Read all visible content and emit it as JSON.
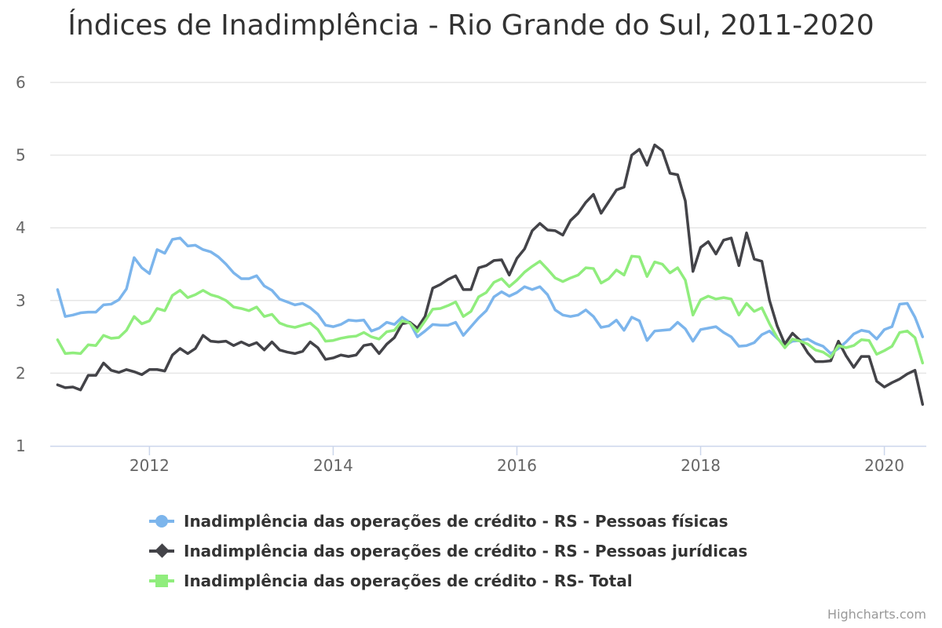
{
  "chart_data": {
    "type": "line",
    "title": "Índices de Inadimplência - Rio Grande do Sul, 2011-2020",
    "xlabel": "",
    "ylabel": "",
    "ylim": [
      1,
      6
    ],
    "y_ticks": [
      "1",
      "2",
      "3",
      "4",
      "5",
      "6"
    ],
    "x_ticks": [
      "2012",
      "2014",
      "2016",
      "2018",
      "2020"
    ],
    "x_start": "2011-01",
    "x_end": "2020-06",
    "frequency": "monthly",
    "grid": true,
    "series": [
      {
        "name": "Inadimplência das operações de crédito - RS - Pessoas físicas",
        "color": "#7cb5ec",
        "marker": "circle",
        "values": [
          3.15,
          2.78,
          2.8,
          2.83,
          2.84,
          2.84,
          2.94,
          2.95,
          3.01,
          3.16,
          3.59,
          3.45,
          3.37,
          3.7,
          3.65,
          3.84,
          3.86,
          3.75,
          3.76,
          3.7,
          3.67,
          3.6,
          3.5,
          3.38,
          3.3,
          3.3,
          3.34,
          3.2,
          3.14,
          3.02,
          2.98,
          2.94,
          2.96,
          2.9,
          2.81,
          2.66,
          2.64,
          2.67,
          2.73,
          2.72,
          2.73,
          2.58,
          2.62,
          2.7,
          2.67,
          2.77,
          2.7,
          2.5,
          2.58,
          2.67,
          2.66,
          2.66,
          2.7,
          2.52,
          2.64,
          2.76,
          2.86,
          3.05,
          3.12,
          3.06,
          3.11,
          3.19,
          3.15,
          3.19,
          3.08,
          2.87,
          2.8,
          2.78,
          2.8,
          2.87,
          2.78,
          2.63,
          2.65,
          2.73,
          2.59,
          2.77,
          2.72,
          2.45,
          2.58,
          2.59,
          2.6,
          2.7,
          2.61,
          2.44,
          2.6,
          2.62,
          2.64,
          2.56,
          2.5,
          2.37,
          2.38,
          2.42,
          2.53,
          2.58,
          2.48,
          2.38,
          2.44,
          2.45,
          2.47,
          2.41,
          2.37,
          2.27,
          2.34,
          2.43,
          2.54,
          2.59,
          2.57,
          2.47,
          2.6,
          2.64,
          2.95,
          2.96,
          2.77,
          2.5
        ]
      },
      {
        "name": "Inadimplência das operações de crédito - RS - Pessoas jurídicas",
        "color": "#434348",
        "marker": "diamond",
        "values": [
          1.84,
          1.8,
          1.81,
          1.77,
          1.97,
          1.97,
          2.14,
          2.04,
          2.01,
          2.05,
          2.02,
          1.98,
          2.05,
          2.05,
          2.03,
          2.25,
          2.34,
          2.27,
          2.34,
          2.52,
          2.44,
          2.43,
          2.44,
          2.38,
          2.43,
          2.38,
          2.42,
          2.32,
          2.43,
          2.32,
          2.29,
          2.27,
          2.3,
          2.43,
          2.35,
          2.19,
          2.21,
          2.25,
          2.23,
          2.25,
          2.38,
          2.4,
          2.27,
          2.4,
          2.49,
          2.68,
          2.7,
          2.62,
          2.78,
          3.17,
          3.22,
          3.29,
          3.34,
          3.15,
          3.15,
          3.45,
          3.48,
          3.55,
          3.56,
          3.35,
          3.58,
          3.71,
          3.96,
          4.06,
          3.97,
          3.96,
          3.9,
          4.1,
          4.2,
          4.35,
          4.46,
          4.2,
          4.36,
          4.52,
          4.56,
          5.0,
          5.08,
          4.86,
          5.14,
          5.06,
          4.75,
          4.73,
          4.37,
          3.4,
          3.73,
          3.81,
          3.64,
          3.83,
          3.86,
          3.48,
          3.93,
          3.57,
          3.54,
          3.0,
          2.65,
          2.4,
          2.55,
          2.45,
          2.28,
          2.16,
          2.16,
          2.17,
          2.44,
          2.24,
          2.08,
          2.23,
          2.23,
          1.89,
          1.81,
          1.87,
          1.92,
          1.99,
          2.04,
          1.57
        ]
      },
      {
        "name": "Inadimplência das operações de crédito - RS- Total",
        "color": "#90ed7d",
        "marker": "square",
        "values": [
          2.46,
          2.27,
          2.28,
          2.27,
          2.39,
          2.38,
          2.52,
          2.48,
          2.49,
          2.59,
          2.78,
          2.68,
          2.72,
          2.89,
          2.86,
          3.07,
          3.14,
          3.04,
          3.08,
          3.14,
          3.08,
          3.05,
          3.0,
          2.91,
          2.89,
          2.86,
          2.91,
          2.78,
          2.81,
          2.69,
          2.65,
          2.63,
          2.66,
          2.69,
          2.6,
          2.44,
          2.45,
          2.48,
          2.5,
          2.51,
          2.56,
          2.5,
          2.47,
          2.57,
          2.59,
          2.72,
          2.69,
          2.57,
          2.72,
          2.88,
          2.89,
          2.93,
          2.98,
          2.78,
          2.85,
          3.05,
          3.11,
          3.25,
          3.3,
          3.19,
          3.28,
          3.39,
          3.47,
          3.54,
          3.43,
          3.31,
          3.26,
          3.31,
          3.35,
          3.45,
          3.44,
          3.24,
          3.3,
          3.42,
          3.35,
          3.61,
          3.6,
          3.33,
          3.53,
          3.5,
          3.38,
          3.45,
          3.28,
          2.8,
          3.01,
          3.06,
          3.02,
          3.04,
          3.02,
          2.8,
          2.96,
          2.85,
          2.9,
          2.68,
          2.49,
          2.35,
          2.47,
          2.44,
          2.4,
          2.32,
          2.29,
          2.22,
          2.38,
          2.35,
          2.38,
          2.46,
          2.45,
          2.26,
          2.31,
          2.37,
          2.56,
          2.58,
          2.49,
          2.14
        ]
      }
    ]
  },
  "credits": "Highcharts.com"
}
